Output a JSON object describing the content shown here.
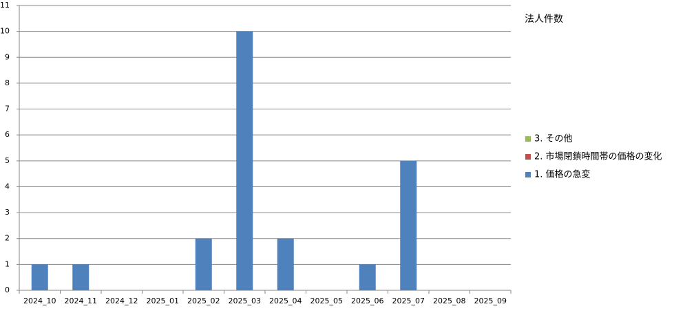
{
  "chart_data": {
    "type": "stacked_bar",
    "title": "法人件数",
    "categories": [
      "2024_10",
      "2024_11",
      "2024_12",
      "2025_01",
      "2025_02",
      "2025_03",
      "2025_04",
      "2025_05",
      "2025_06",
      "2025_07",
      "2025_08",
      "2025_09"
    ],
    "series": [
      {
        "name": "1. 価格の急変",
        "color": "#4f81bd",
        "values": [
          1,
          1,
          0,
          0,
          2,
          10,
          2,
          0,
          1,
          5,
          0,
          0
        ]
      },
      {
        "name": "2. 市場閉鎖時間帯の価格の変化",
        "color": "#c0504d",
        "values": [
          0,
          0,
          0,
          0,
          0,
          0,
          0,
          0,
          0,
          0,
          0,
          0
        ]
      },
      {
        "name": "3. その他",
        "color": "#9bbb59",
        "values": [
          0,
          0,
          0,
          0,
          0,
          0,
          0,
          0,
          0,
          0,
          0,
          0
        ]
      }
    ],
    "ylim": [
      0,
      11
    ],
    "yticks": [
      0,
      1,
      2,
      3,
      4,
      5,
      6,
      7,
      8,
      9,
      10,
      11
    ],
    "grid": true,
    "legend": "right"
  }
}
